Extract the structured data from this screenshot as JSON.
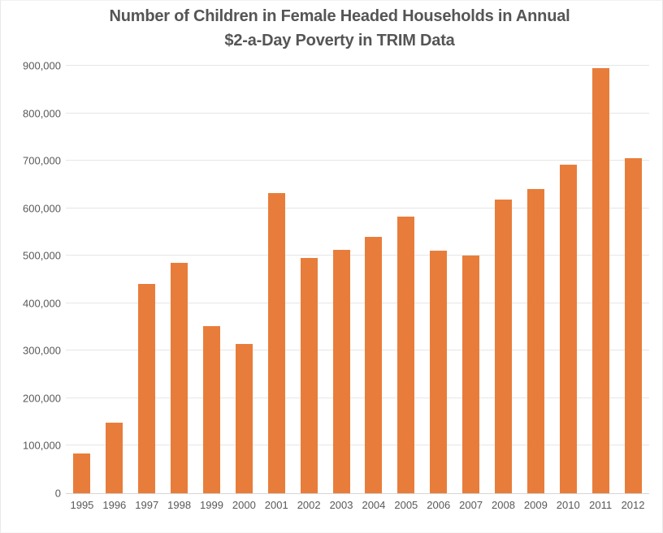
{
  "title": {
    "line1": "Number of Children in Female Headed Households in Annual",
    "line2": "$2-a-Day Poverty in TRIM Data"
  },
  "chart_data": {
    "type": "bar",
    "title": "Number of Children in Female Headed Households in Annual $2-a-Day Poverty in TRIM Data",
    "categories": [
      "1995",
      "1996",
      "1997",
      "1998",
      "1999",
      "2000",
      "2001",
      "2002",
      "2003",
      "2004",
      "2005",
      "2006",
      "2007",
      "2008",
      "2009",
      "2010",
      "2011",
      "2012"
    ],
    "values": [
      84000,
      148000,
      441000,
      485000,
      352000,
      315000,
      632000,
      495000,
      513000,
      539000,
      582000,
      511000,
      500000,
      618000,
      640000,
      692000,
      895000,
      705000
    ],
    "xlabel": "",
    "ylabel": "",
    "ylim": [
      0,
      900000
    ],
    "ytick_step": 100000,
    "ytick_labels": [
      "0",
      "100,000",
      "200,000",
      "300,000",
      "400,000",
      "500,000",
      "600,000",
      "700,000",
      "800,000",
      "900,000"
    ],
    "grid": true,
    "legend": false,
    "colors": {
      "bar": "#E87D3B",
      "gridline": "#E6E6E6",
      "axis_line": "#D5D5D5",
      "axis_label": "#595959",
      "title": "#555555"
    }
  }
}
